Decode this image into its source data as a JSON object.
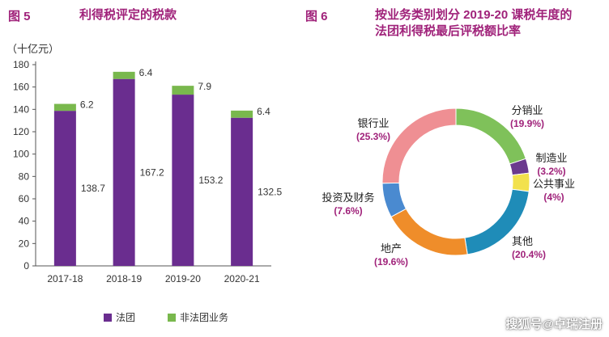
{
  "fig5": {
    "label": "图 5",
    "title": "利得税评定的税款",
    "unit": "（十亿元）",
    "legend": [
      {
        "name": "法团",
        "color": "#6a2d8f"
      },
      {
        "name": "非法团业务",
        "color": "#79b84d"
      }
    ]
  },
  "fig6": {
    "label": "图 6",
    "title_line1": "按业务类别划分 2019-20 课税年度的",
    "title_line2": "法团利得税最后评税额比率"
  },
  "watermark": "搜狐号@卓瑞注册",
  "chart_data": [
    {
      "type": "bar",
      "stacked": true,
      "categories": [
        "2017-18",
        "2018-19",
        "2019-20",
        "2020-21"
      ],
      "series": [
        {
          "name": "法团",
          "color": "#6a2d8f",
          "values": [
            138.7,
            167.2,
            153.2,
            132.5
          ],
          "labels": [
            "138.7",
            "167.2",
            "153.2",
            "132.5"
          ]
        },
        {
          "name": "非法团业务",
          "color": "#79b84d",
          "values": [
            6.2,
            6.4,
            7.9,
            6.4
          ],
          "labels": [
            "6.2",
            "6.4",
            "7.9",
            "6.4"
          ]
        }
      ],
      "ylabel": "（十亿元）",
      "ylim": [
        0,
        180
      ],
      "yticks": [
        0,
        20,
        40,
        60,
        80,
        100,
        120,
        140,
        160,
        180
      ],
      "grid": false,
      "legend_position": "bottom"
    },
    {
      "type": "pie",
      "donut": true,
      "slices": [
        {
          "name": "分销业",
          "value": 19.9,
          "label": "(19.9%)",
          "color": "#7fc15a"
        },
        {
          "name": "制造业",
          "value": 3.2,
          "label": "(3.2%)",
          "color": "#6b3a8e"
        },
        {
          "name": "公共事业",
          "value": 4,
          "label": "(4%)",
          "color": "#f2e14d"
        },
        {
          "name": "其他",
          "value": 20.4,
          "label": "(20.4%)",
          "color": "#1f8cb8"
        },
        {
          "name": "地产",
          "value": 19.6,
          "label": "(19.6%)",
          "color": "#ef8d2a"
        },
        {
          "name": "投资及财务",
          "value": 7.6,
          "label": "(7.6%)",
          "color": "#4a8ad0"
        },
        {
          "name": "银行业",
          "value": 25.3,
          "label": "(25.3%)",
          "color": "#ef8f93"
        }
      ],
      "start": "top",
      "direction": "clockwise"
    }
  ]
}
